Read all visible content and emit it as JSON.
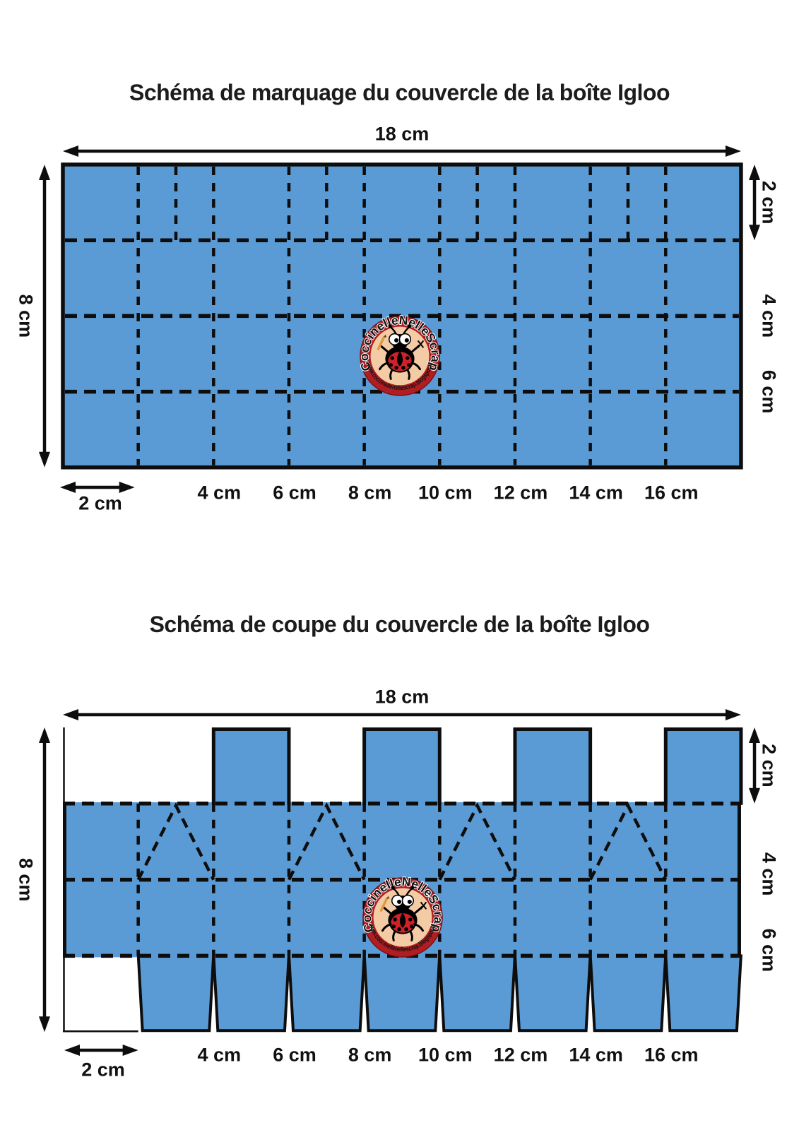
{
  "page": {
    "background": "#ffffff"
  },
  "colors": {
    "paper_blue": "#5b9bd5",
    "line_black": "#0d0d0d",
    "label_black": "#1a1a1a",
    "logo_ring_red": "#b01d22",
    "logo_ring_edge": "#7c1115",
    "logo_inner_peach": "#f3cba5",
    "logo_wing_red": "#cf2127",
    "logo_text_red": "#cf2127",
    "logo_text_white": "#ffffff",
    "pencil_orange": "#dd9a3e"
  },
  "logo": {
    "badge_name": "coccinellenellescrap-badge",
    "arc_text_top": "CoccinelleNelleScrap",
    "arc_text_bottom": "www.coccinellenellescrap.blogspot.fr"
  },
  "diagrams": [
    {
      "id": "marquage",
      "kind": "marking",
      "title": "Schéma de marquage du couvercle de la boîte Igloo",
      "sheet": {
        "width_cm": 18,
        "height_cm": 8
      },
      "width_label": "18 cm",
      "height_label": "8 cm",
      "right_side_labels": [
        "2 cm",
        "4 cm",
        "6 cm"
      ],
      "right_side_at_cm": [
        2,
        4,
        6
      ],
      "bottom_offset_label": "2 cm",
      "bottom_offset_span_cm": [
        0,
        2
      ],
      "bottom_tick_labels": [
        "4 cm",
        "6 cm",
        "8 cm",
        "10 cm",
        "12 cm",
        "14 cm",
        "16 cm"
      ],
      "bottom_tick_at_cm": [
        4,
        6,
        8,
        10,
        12,
        14,
        16
      ],
      "fold_lines": {
        "vertical_cm": [
          2,
          4,
          6,
          8,
          10,
          12,
          14,
          16
        ],
        "top_band_vertical_cm": [
          3,
          7,
          11,
          15
        ],
        "horizontal_cm": [
          2,
          4,
          6
        ]
      }
    },
    {
      "id": "coupe",
      "kind": "cutting",
      "title": "Schéma de coupe du couvercle de la boîte Igloo",
      "sheet": {
        "width_cm": 18,
        "height_cm": 8
      },
      "width_label": "18 cm",
      "height_label": "8 cm",
      "right_side_labels": [
        "2 cm",
        "4 cm",
        "6 cm"
      ],
      "right_side_at_cm": [
        2,
        4,
        6
      ],
      "bottom_offset_label": "2 cm",
      "bottom_offset_span_cm": [
        0,
        2
      ],
      "bottom_tick_labels": [
        "4 cm",
        "6 cm",
        "8 cm",
        "10 cm",
        "12 cm",
        "14 cm",
        "16 cm"
      ],
      "bottom_tick_at_cm": [
        4,
        6,
        8,
        10,
        12,
        14,
        16
      ],
      "fold_lines": {
        "vertical_cm": [
          2,
          4,
          6,
          8,
          10,
          12,
          14,
          16
        ],
        "horizontal_cm": [
          2,
          4,
          6
        ]
      },
      "top_tabs_cm": [
        [
          4,
          6
        ],
        [
          8,
          10
        ],
        [
          12,
          14
        ],
        [
          16,
          18
        ]
      ],
      "bottom_tabs_cm": [
        [
          2,
          4
        ],
        [
          4,
          6
        ],
        [
          6,
          8
        ],
        [
          8,
          10
        ],
        [
          10,
          12
        ],
        [
          12,
          14
        ],
        [
          14,
          16
        ],
        [
          16,
          18
        ]
      ],
      "corner_fold_peaks_cm": [
        3,
        7,
        11,
        15
      ],
      "cutaway_corners_cm": {
        "top_left_span_cm": [
          0,
          4
        ],
        "bottom_left_span_cm": [
          0,
          2
        ]
      }
    }
  ]
}
